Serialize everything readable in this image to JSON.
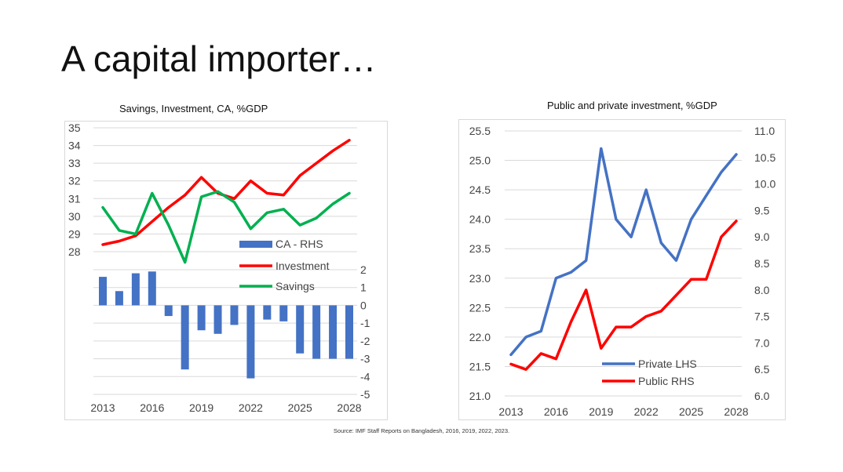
{
  "slide": {
    "title": "A capital importer…",
    "source": "Source: IMF Staff Reports on Bangladesh, 2016, 2019, 2022, 2023."
  },
  "colors": {
    "investment": "#ff0000",
    "savings": "#00b050",
    "ca": "#4472c4",
    "private": "#4472c4",
    "public": "#ff0000",
    "grid": "#d9d9d9"
  },
  "chart_data": [
    {
      "type": "line",
      "title": "Savings, Investment, CA, %GDP",
      "x": [
        2013,
        2014,
        2015,
        2016,
        2017,
        2018,
        2019,
        2020,
        2021,
        2022,
        2023,
        2024,
        2025,
        2026,
        2027,
        2028
      ],
      "x_ticks": [
        "2013",
        "2016",
        "2019",
        "2022",
        "2025",
        "2028"
      ],
      "y_ticks_left": [
        "35",
        "34",
        "33",
        "32",
        "31",
        "30",
        "29",
        "28"
      ],
      "ylim_left": [
        28,
        35
      ],
      "y_ticks_right": [
        "2",
        "1",
        "0",
        "-1",
        "-2",
        "-3",
        "-4",
        "-5"
      ],
      "ylim_right": [
        -5,
        2
      ],
      "legend_position": "center",
      "series": [
        {
          "name": "CA - RHS",
          "type": "bar",
          "axis": "right",
          "values": [
            1.6,
            0.8,
            1.8,
            1.9,
            -0.6,
            -3.6,
            -1.4,
            -1.6,
            -1.1,
            -4.1,
            -0.8,
            -0.9,
            -2.7,
            -3.0,
            -3.0,
            -3.0
          ]
        },
        {
          "name": "Investment",
          "type": "line",
          "axis": "left",
          "values": [
            28.4,
            28.6,
            28.9,
            29.7,
            30.5,
            31.2,
            32.2,
            31.3,
            31.0,
            32.0,
            31.3,
            31.2,
            32.3,
            33.0,
            33.7,
            34.3
          ]
        },
        {
          "name": "Savings",
          "type": "line",
          "axis": "left",
          "values": [
            30.5,
            29.2,
            29.0,
            31.3,
            29.5,
            27.4,
            31.1,
            31.4,
            30.8,
            29.3,
            30.2,
            30.4,
            29.5,
            29.9,
            30.7,
            31.3
          ]
        }
      ]
    },
    {
      "type": "line",
      "title": "Public and private investment, %GDP",
      "x": [
        2013,
        2014,
        2015,
        2016,
        2017,
        2018,
        2019,
        2020,
        2021,
        2022,
        2023,
        2024,
        2025,
        2026,
        2027,
        2028
      ],
      "x_ticks": [
        "2013",
        "2016",
        "2019",
        "2022",
        "2025",
        "2028"
      ],
      "y_ticks_left": [
        "25.5",
        "25.0",
        "24.5",
        "24.0",
        "23.5",
        "23.0",
        "22.5",
        "22.0",
        "21.5",
        "21.0"
      ],
      "ylim_left": [
        21.0,
        25.5
      ],
      "y_ticks_right": [
        "11.0",
        "10.5",
        "10.0",
        "9.5",
        "9.0",
        "8.5",
        "8.0",
        "7.5",
        "7.0",
        "6.5",
        "6.0"
      ],
      "ylim_right": [
        6.0,
        11.0
      ],
      "legend_position": "bottom",
      "series": [
        {
          "name": "Private LHS",
          "axis": "left",
          "values": [
            21.7,
            22.0,
            22.1,
            23.0,
            23.1,
            23.3,
            25.2,
            24.0,
            23.7,
            24.5,
            23.6,
            23.3,
            24.0,
            24.4,
            24.8,
            25.1
          ]
        },
        {
          "name": "Public RHS",
          "axis": "right",
          "values": [
            6.6,
            6.5,
            6.8,
            6.7,
            7.4,
            8.0,
            6.9,
            7.3,
            7.3,
            7.5,
            7.6,
            7.9,
            8.2,
            8.2,
            9.0,
            9.3
          ]
        }
      ]
    }
  ]
}
